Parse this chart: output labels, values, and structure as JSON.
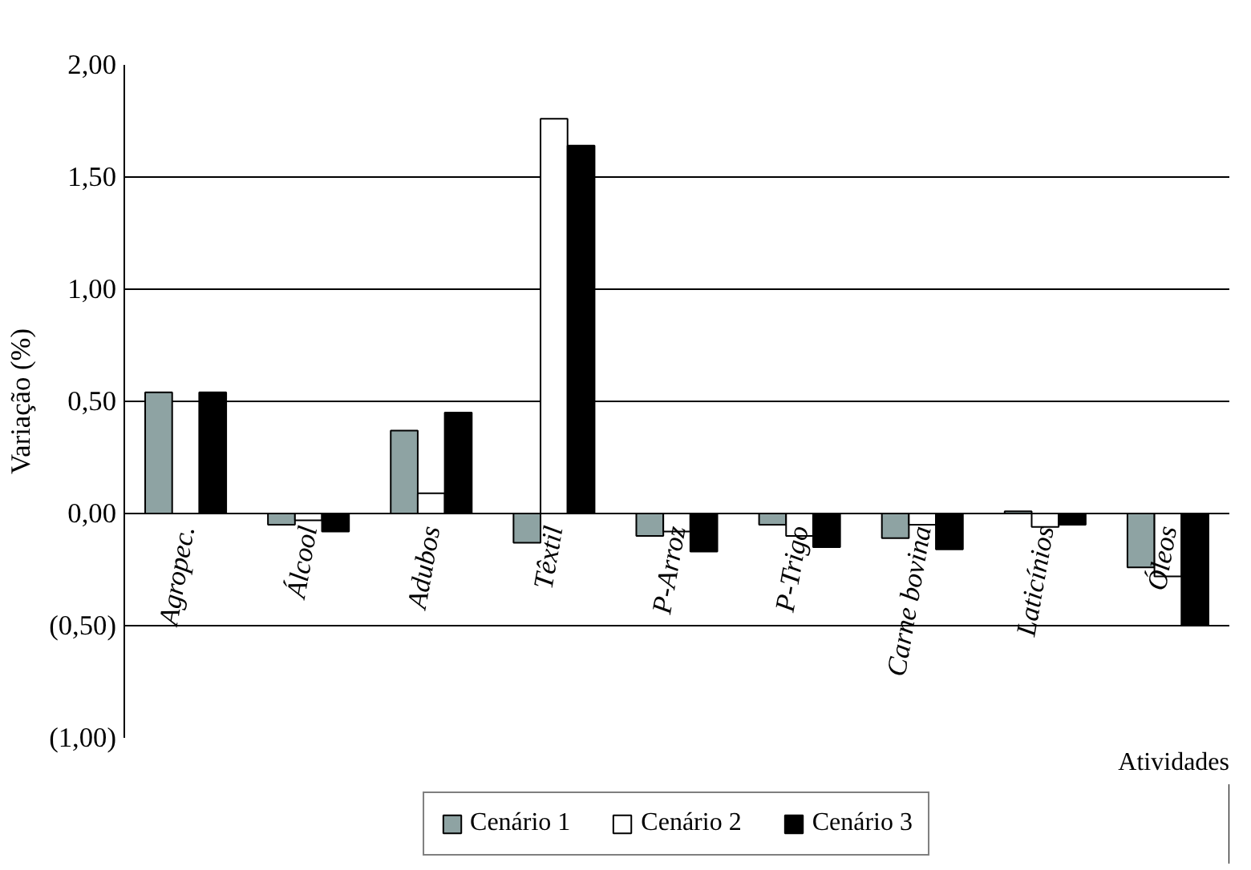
{
  "chart_data": {
    "type": "bar",
    "ylabel": "Variação (%)",
    "xlabel": "Atividades",
    "categories": [
      "Agropec.",
      "Álcool",
      "Adubos",
      "Têxtil",
      "P-Arroz",
      "P-Trigo",
      "Carne bovina",
      "Laticínios",
      "Óleos"
    ],
    "series": [
      {
        "name": "Cenário 1",
        "color": "#8ea3a3",
        "values": [
          0.54,
          -0.05,
          0.37,
          -0.13,
          -0.1,
          -0.05,
          -0.11,
          0.01,
          -0.24
        ]
      },
      {
        "name": "Cenário 2",
        "color": "#ffffff",
        "values": [
          null,
          -0.03,
          0.09,
          1.76,
          -0.08,
          -0.1,
          -0.05,
          -0.06,
          -0.28
        ]
      },
      {
        "name": "Cenário 3",
        "color": "#000000",
        "values": [
          0.54,
          -0.08,
          0.45,
          1.64,
          -0.17,
          -0.15,
          -0.16,
          -0.05,
          -0.5
        ]
      }
    ],
    "ylim": [
      -1,
      2
    ],
    "yticks": [
      {
        "value": -1,
        "label": "(1,00)"
      },
      {
        "value": -0.5,
        "label": "(0,50)"
      },
      {
        "value": 0,
        "label": "0,00"
      },
      {
        "value": 0.5,
        "label": "0,50"
      },
      {
        "value": 1,
        "label": "1,00"
      },
      {
        "value": 1.5,
        "label": "1,50"
      },
      {
        "value": 2,
        "label": "2,00"
      }
    ],
    "grid": "y",
    "legend": "bottom"
  }
}
